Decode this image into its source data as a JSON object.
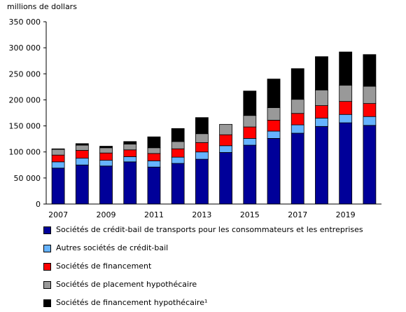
{
  "chart_data": {
    "type": "bar",
    "stacked": true,
    "title": "",
    "ylabel": "millions de dollars",
    "xlabel": "",
    "ylim": [
      0,
      350000
    ],
    "yticks": [
      0,
      50000,
      100000,
      150000,
      200000,
      250000,
      300000,
      350000
    ],
    "ytick_labels": [
      "0",
      "50 000",
      "100 000",
      "150 000",
      "200 000",
      "250 000",
      "300 000",
      "350 000"
    ],
    "categories": [
      "2007",
      "2008",
      "2009",
      "2010",
      "2011",
      "2012",
      "2013",
      "2014",
      "2015",
      "2016",
      "2017",
      "2018",
      "2019",
      "2020"
    ],
    "xtick_labels": [
      "2007",
      "",
      "2009",
      "",
      "2011",
      "",
      "2013",
      "",
      "2015",
      "",
      "2017",
      "",
      "2019",
      ""
    ],
    "grid": false,
    "legend_position": "bottom",
    "series": [
      {
        "name": "Sociétés de crédit-bail de transports pour les consommateurs et les entreprises",
        "color": "#000099",
        "values": [
          69000,
          75000,
          73000,
          81000,
          71000,
          78000,
          86000,
          99000,
          113000,
          126000,
          136000,
          149000,
          156000,
          151000
        ]
      },
      {
        "name": "Autres sociétés de crédit-bail",
        "color": "#66b3ff",
        "values": [
          12000,
          13000,
          11000,
          10000,
          12000,
          12000,
          14000,
          13000,
          13000,
          14000,
          16000,
          16000,
          16000,
          17000
        ]
      },
      {
        "name": "Sociétés de financement",
        "color": "#ff0000",
        "values": [
          13000,
          15000,
          14000,
          13000,
          14000,
          16000,
          18000,
          21000,
          22000,
          21000,
          22000,
          24000,
          25000,
          25000
        ]
      },
      {
        "name": "Sociétés de placement hypothécaire",
        "color": "#999999",
        "values": [
          11000,
          10000,
          10000,
          11000,
          11000,
          14000,
          17000,
          20000,
          22000,
          24000,
          27000,
          30000,
          31000,
          33000
        ]
      },
      {
        "name": "Sociétés de financement hypothécaire¹",
        "color": "#000000",
        "values": [
          1000,
          3000,
          3000,
          5000,
          21000,
          25000,
          31000,
          0,
          47000,
          55000,
          59000,
          64000,
          64000,
          61000
        ]
      }
    ]
  }
}
